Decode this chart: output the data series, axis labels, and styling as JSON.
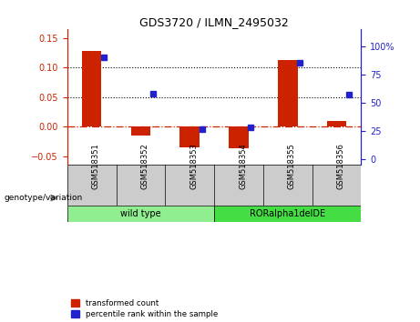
{
  "title": "GDS3720 / ILMN_2495032",
  "samples": [
    "GSM518351",
    "GSM518352",
    "GSM518353",
    "GSM518354",
    "GSM518355",
    "GSM518356"
  ],
  "transformed_count": [
    0.128,
    -0.015,
    -0.035,
    -0.036,
    0.113,
    0.01
  ],
  "percentile_rank": [
    90,
    58,
    27,
    28,
    85,
    57
  ],
  "groups": [
    {
      "label": "wild type",
      "indices": [
        0,
        1,
        2
      ],
      "color": "#90EE90"
    },
    {
      "label": "RORalpha1delDE",
      "indices": [
        3,
        4,
        5
      ],
      "color": "#44DD44"
    }
  ],
  "ylim_left": [
    -0.065,
    0.165
  ],
  "ylim_right": [
    -5,
    115
  ],
  "yticks_left": [
    -0.05,
    0.0,
    0.05,
    0.1,
    0.15
  ],
  "yticks_right": [
    0,
    25,
    50,
    75,
    100
  ],
  "red_color": "#CC2200",
  "blue_color": "#2222CC",
  "background_color": "#FFFFFF",
  "gray_color": "#CCCCCC",
  "legend_red": "transformed count",
  "legend_blue": "percentile rank within the sample",
  "genotype_label": "genotype/variation"
}
